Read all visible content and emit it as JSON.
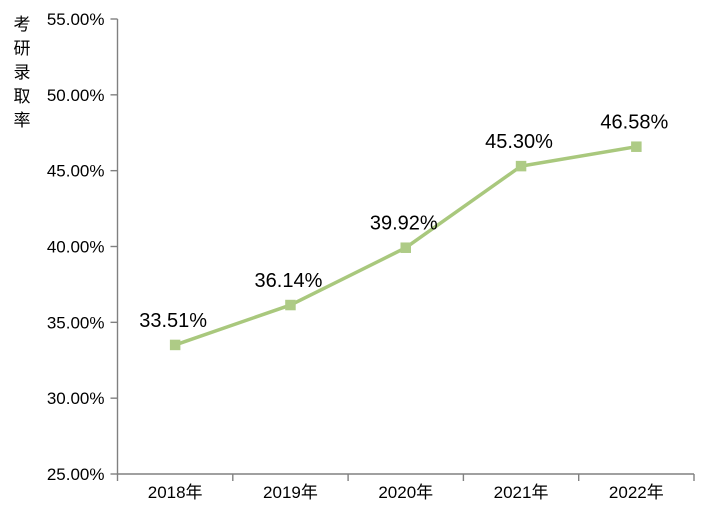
{
  "chart_data": {
    "type": "line",
    "title": "",
    "ylabel": "考研录取率",
    "xlabel": "",
    "categories": [
      "2018年",
      "2019年",
      "2020年",
      "2021年",
      "2022年"
    ],
    "series": [
      {
        "name": "考研录取率",
        "values": [
          33.51,
          36.14,
          39.92,
          45.3,
          46.58
        ],
        "data_labels": [
          "33.51%",
          "36.14%",
          "39.92%",
          "45.30%",
          "46.58%"
        ]
      }
    ],
    "ylim": [
      25,
      55
    ],
    "ytick_step": 5,
    "ytick_labels": [
      "25.00%",
      "30.00%",
      "35.00%",
      "40.00%",
      "45.00%",
      "50.00%",
      "55.00%"
    ],
    "grid": false,
    "legend_position": "none",
    "marker": "square",
    "colors": {
      "line": "#A9C87D",
      "marker_fill": "#AECB86",
      "axis": "#808080",
      "text": "#000000",
      "background": "#FFFFFF"
    }
  }
}
